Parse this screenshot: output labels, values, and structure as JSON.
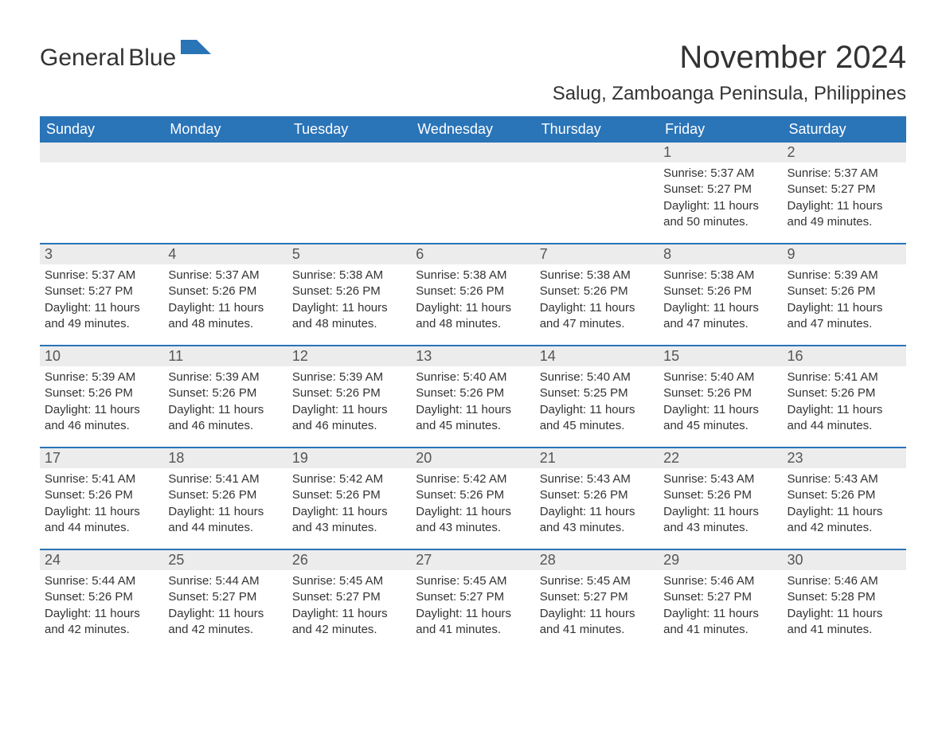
{
  "brand": {
    "name1": "General",
    "name2": "Blue",
    "icon_color": "#2a74b8"
  },
  "title": "November 2024",
  "subtitle": "Salug, Zamboanga Peninsula, Philippines",
  "header_bg": "#2a74b8",
  "header_fg": "#ffffff",
  "daynum_bg": "#ececec",
  "border_color": "#2a74b8",
  "weekdays": [
    "Sunday",
    "Monday",
    "Tuesday",
    "Wednesday",
    "Thursday",
    "Friday",
    "Saturday"
  ],
  "weeks": [
    [
      null,
      null,
      null,
      null,
      null,
      {
        "n": "1",
        "sr": "5:37 AM",
        "ss": "5:27 PM",
        "dl": "11 hours and 50 minutes."
      },
      {
        "n": "2",
        "sr": "5:37 AM",
        "ss": "5:27 PM",
        "dl": "11 hours and 49 minutes."
      }
    ],
    [
      {
        "n": "3",
        "sr": "5:37 AM",
        "ss": "5:27 PM",
        "dl": "11 hours and 49 minutes."
      },
      {
        "n": "4",
        "sr": "5:37 AM",
        "ss": "5:26 PM",
        "dl": "11 hours and 48 minutes."
      },
      {
        "n": "5",
        "sr": "5:38 AM",
        "ss": "5:26 PM",
        "dl": "11 hours and 48 minutes."
      },
      {
        "n": "6",
        "sr": "5:38 AM",
        "ss": "5:26 PM",
        "dl": "11 hours and 48 minutes."
      },
      {
        "n": "7",
        "sr": "5:38 AM",
        "ss": "5:26 PM",
        "dl": "11 hours and 47 minutes."
      },
      {
        "n": "8",
        "sr": "5:38 AM",
        "ss": "5:26 PM",
        "dl": "11 hours and 47 minutes."
      },
      {
        "n": "9",
        "sr": "5:39 AM",
        "ss": "5:26 PM",
        "dl": "11 hours and 47 minutes."
      }
    ],
    [
      {
        "n": "10",
        "sr": "5:39 AM",
        "ss": "5:26 PM",
        "dl": "11 hours and 46 minutes."
      },
      {
        "n": "11",
        "sr": "5:39 AM",
        "ss": "5:26 PM",
        "dl": "11 hours and 46 minutes."
      },
      {
        "n": "12",
        "sr": "5:39 AM",
        "ss": "5:26 PM",
        "dl": "11 hours and 46 minutes."
      },
      {
        "n": "13",
        "sr": "5:40 AM",
        "ss": "5:26 PM",
        "dl": "11 hours and 45 minutes."
      },
      {
        "n": "14",
        "sr": "5:40 AM",
        "ss": "5:25 PM",
        "dl": "11 hours and 45 minutes."
      },
      {
        "n": "15",
        "sr": "5:40 AM",
        "ss": "5:26 PM",
        "dl": "11 hours and 45 minutes."
      },
      {
        "n": "16",
        "sr": "5:41 AM",
        "ss": "5:26 PM",
        "dl": "11 hours and 44 minutes."
      }
    ],
    [
      {
        "n": "17",
        "sr": "5:41 AM",
        "ss": "5:26 PM",
        "dl": "11 hours and 44 minutes."
      },
      {
        "n": "18",
        "sr": "5:41 AM",
        "ss": "5:26 PM",
        "dl": "11 hours and 44 minutes."
      },
      {
        "n": "19",
        "sr": "5:42 AM",
        "ss": "5:26 PM",
        "dl": "11 hours and 43 minutes."
      },
      {
        "n": "20",
        "sr": "5:42 AM",
        "ss": "5:26 PM",
        "dl": "11 hours and 43 minutes."
      },
      {
        "n": "21",
        "sr": "5:43 AM",
        "ss": "5:26 PM",
        "dl": "11 hours and 43 minutes."
      },
      {
        "n": "22",
        "sr": "5:43 AM",
        "ss": "5:26 PM",
        "dl": "11 hours and 43 minutes."
      },
      {
        "n": "23",
        "sr": "5:43 AM",
        "ss": "5:26 PM",
        "dl": "11 hours and 42 minutes."
      }
    ],
    [
      {
        "n": "24",
        "sr": "5:44 AM",
        "ss": "5:26 PM",
        "dl": "11 hours and 42 minutes."
      },
      {
        "n": "25",
        "sr": "5:44 AM",
        "ss": "5:27 PM",
        "dl": "11 hours and 42 minutes."
      },
      {
        "n": "26",
        "sr": "5:45 AM",
        "ss": "5:27 PM",
        "dl": "11 hours and 42 minutes."
      },
      {
        "n": "27",
        "sr": "5:45 AM",
        "ss": "5:27 PM",
        "dl": "11 hours and 41 minutes."
      },
      {
        "n": "28",
        "sr": "5:45 AM",
        "ss": "5:27 PM",
        "dl": "11 hours and 41 minutes."
      },
      {
        "n": "29",
        "sr": "5:46 AM",
        "ss": "5:27 PM",
        "dl": "11 hours and 41 minutes."
      },
      {
        "n": "30",
        "sr": "5:46 AM",
        "ss": "5:28 PM",
        "dl": "11 hours and 41 minutes."
      }
    ]
  ],
  "labels": {
    "sunrise": "Sunrise: ",
    "sunset": "Sunset: ",
    "daylight": "Daylight: "
  }
}
